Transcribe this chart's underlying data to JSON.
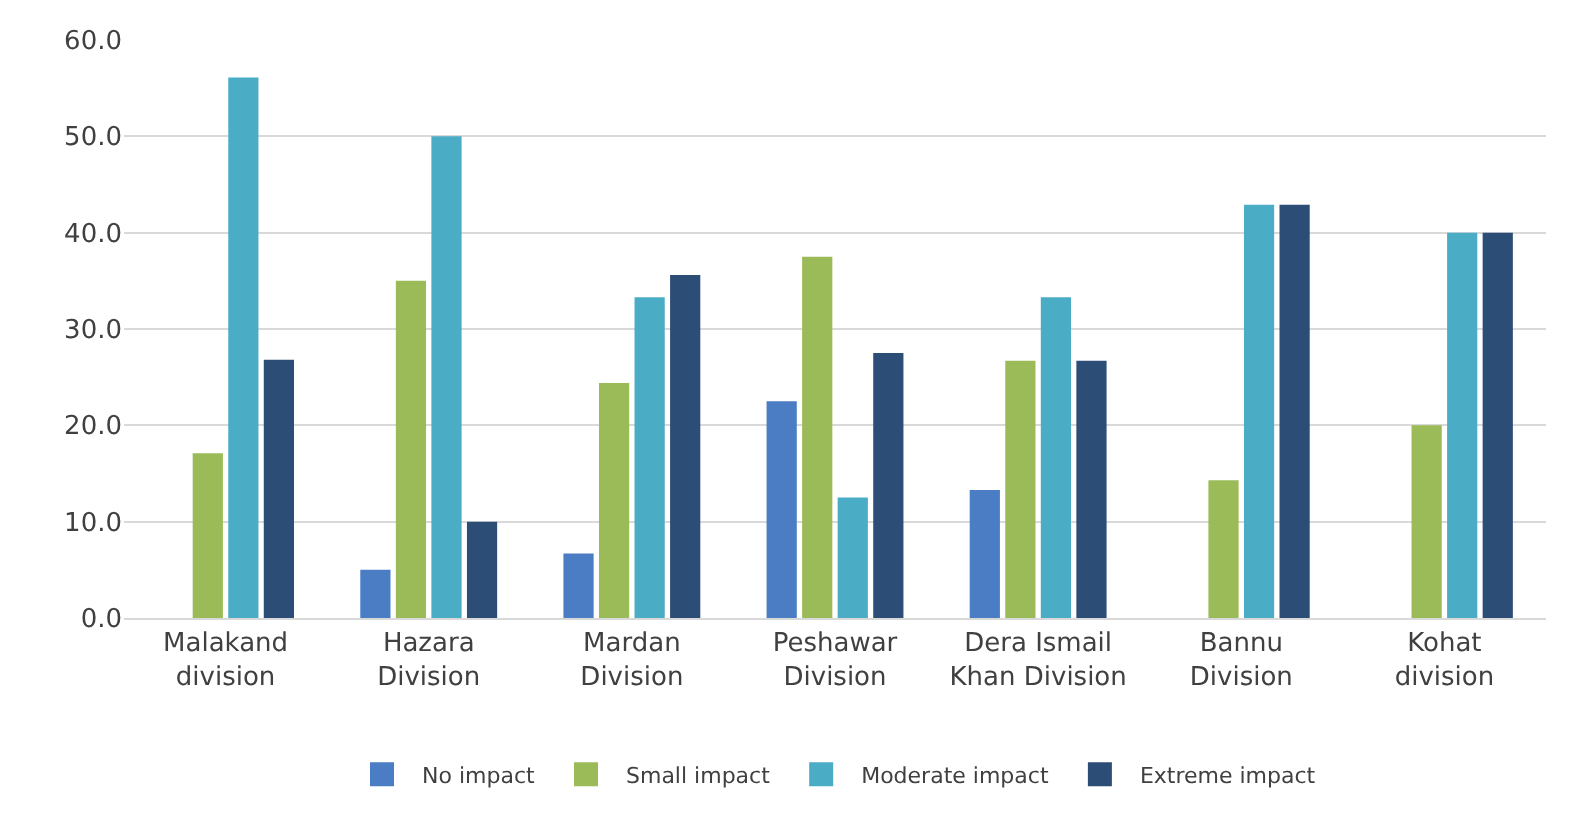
{
  "chart_data": {
    "type": "bar",
    "categories": [
      "Malakand division",
      "Hazara Division",
      "Mardan Division",
      "Peshawar Division",
      "Dera Ismail Khan Division",
      "Bannu Division",
      "Kohat division"
    ],
    "series": [
      {
        "name": "No impact",
        "color": "#4a7dc4",
        "values": [
          0,
          5.0,
          6.7,
          22.5,
          13.3,
          0,
          0
        ]
      },
      {
        "name": "Small impact",
        "color": "#9bbb59",
        "values": [
          17.1,
          35.0,
          24.4,
          37.5,
          26.7,
          14.3,
          20.0
        ]
      },
      {
        "name": "Moderate impact",
        "color": "#4bacc6",
        "values": [
          56.1,
          50.0,
          33.3,
          12.5,
          33.3,
          42.9,
          40.0
        ]
      },
      {
        "name": "Extreme impact",
        "color": "#2c4d75",
        "values": [
          26.8,
          10.0,
          35.6,
          27.5,
          26.7,
          42.9,
          40.0
        ]
      }
    ],
    "ylim": [
      0,
      60
    ],
    "yticks": [
      {
        "value": 0,
        "label": "0.0"
      },
      {
        "value": 10,
        "label": "10.0"
      },
      {
        "value": 20,
        "label": "20.0"
      },
      {
        "value": 30,
        "label": "30.0"
      },
      {
        "value": 40,
        "label": "40.0"
      },
      {
        "value": 50,
        "label": "50.0"
      },
      {
        "value": 60,
        "label": "60.0"
      }
    ],
    "grid": "y",
    "legend": "bottom"
  }
}
